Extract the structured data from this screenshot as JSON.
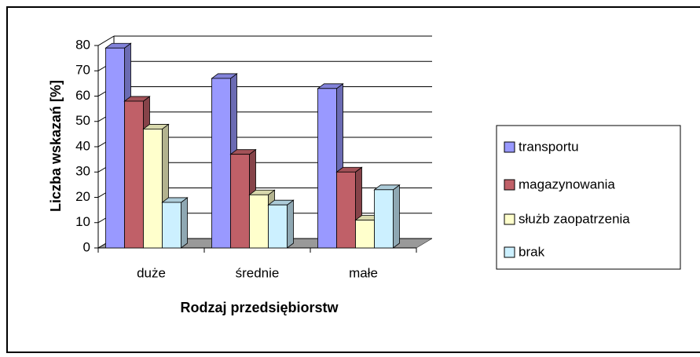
{
  "chart_data": {
    "type": "bar3d",
    "xlabel": "Rodzaj przedsiębiorstw",
    "ylabel": "Liczba wskazań [%]",
    "categories": [
      "duże",
      "średnie",
      "małe"
    ],
    "series": [
      {
        "name": "transportu",
        "color": "#9999ff",
        "values": [
          79,
          67,
          63
        ]
      },
      {
        "name": "magazynowania",
        "color": "#c06068",
        "values": [
          58,
          37,
          30
        ]
      },
      {
        "name": "służb zaopatrzenia",
        "color": "#ffffcc",
        "values": [
          47,
          21,
          11
        ]
      },
      {
        "name": "brak",
        "color": "#ccf0ff",
        "values": [
          18,
          17,
          23
        ]
      }
    ],
    "ylim": [
      0,
      80
    ],
    "yticks": [
      0,
      10,
      20,
      30,
      40,
      50,
      60,
      70,
      80
    ],
    "grid": true,
    "legend": "right"
  }
}
